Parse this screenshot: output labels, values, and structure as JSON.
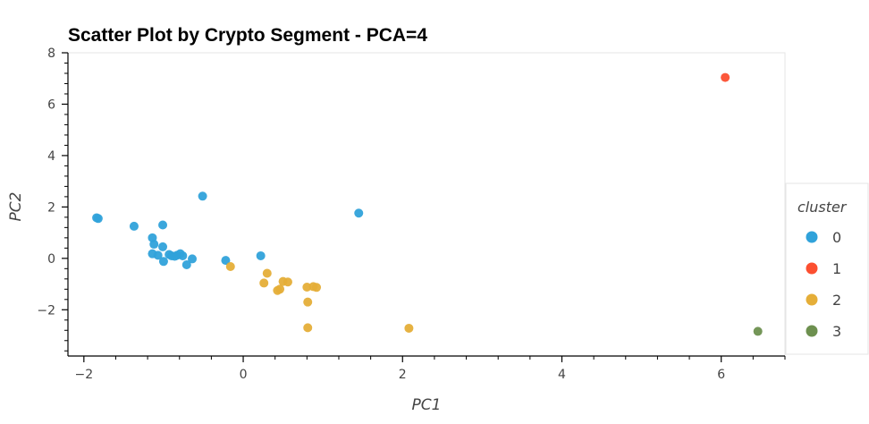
{
  "chart_data": {
    "type": "scatter",
    "title": "Scatter Plot by Crypto Segment - PCA=4",
    "xlabel": "PC1",
    "ylabel": "PC2",
    "xlim": [
      -2.2,
      6.8
    ],
    "ylim": [
      -3.8,
      8.0
    ],
    "x_ticks": [
      -2,
      0,
      2,
      4,
      6
    ],
    "x_tick_labels": [
      "−2",
      "0",
      "2",
      "4",
      "6"
    ],
    "y_ticks": [
      -2,
      0,
      2,
      4,
      6,
      8
    ],
    "y_tick_labels": [
      "−2",
      "0",
      "2",
      "4",
      "6",
      "8"
    ],
    "grid": false,
    "legend": {
      "title": "cluster",
      "placement": "right",
      "entries": [
        "0",
        "1",
        "2",
        "3"
      ]
    },
    "series": [
      {
        "name": "0",
        "color": "#30a2da",
        "points": [
          [
            -1.84,
            1.58
          ],
          [
            -1.82,
            1.55
          ],
          [
            -1.37,
            1.25
          ],
          [
            -1.14,
            0.8
          ],
          [
            -1.12,
            0.55
          ],
          [
            -1.14,
            0.18
          ],
          [
            -1.07,
            0.12
          ],
          [
            -1.01,
            1.3
          ],
          [
            -1.01,
            0.45
          ],
          [
            -1.0,
            -0.12
          ],
          [
            -0.93,
            0.15
          ],
          [
            -0.9,
            0.1
          ],
          [
            -0.86,
            0.08
          ],
          [
            -0.83,
            0.12
          ],
          [
            -0.79,
            0.18
          ],
          [
            -0.76,
            0.1
          ],
          [
            -0.71,
            -0.25
          ],
          [
            -0.64,
            -0.02
          ],
          [
            -0.51,
            2.42
          ],
          [
            -0.22,
            -0.08
          ],
          [
            0.22,
            0.1
          ],
          [
            1.45,
            1.76
          ]
        ]
      },
      {
        "name": "1",
        "color": "#fc4f30",
        "points": [
          [
            6.05,
            7.04
          ]
        ]
      },
      {
        "name": "2",
        "color": "#e5ae38",
        "points": [
          [
            -0.16,
            -0.32
          ],
          [
            0.26,
            -0.96
          ],
          [
            0.3,
            -0.58
          ],
          [
            0.43,
            -1.25
          ],
          [
            0.46,
            -1.2
          ],
          [
            0.5,
            -0.9
          ],
          [
            0.56,
            -0.92
          ],
          [
            0.8,
            -1.12
          ],
          [
            0.81,
            -1.7
          ],
          [
            0.81,
            -2.7
          ],
          [
            0.88,
            -1.1
          ],
          [
            0.92,
            -1.13
          ],
          [
            2.08,
            -2.72
          ]
        ]
      },
      {
        "name": "3",
        "color": "#6d904f",
        "points": [
          [
            6.46,
            -2.84
          ]
        ]
      }
    ]
  }
}
